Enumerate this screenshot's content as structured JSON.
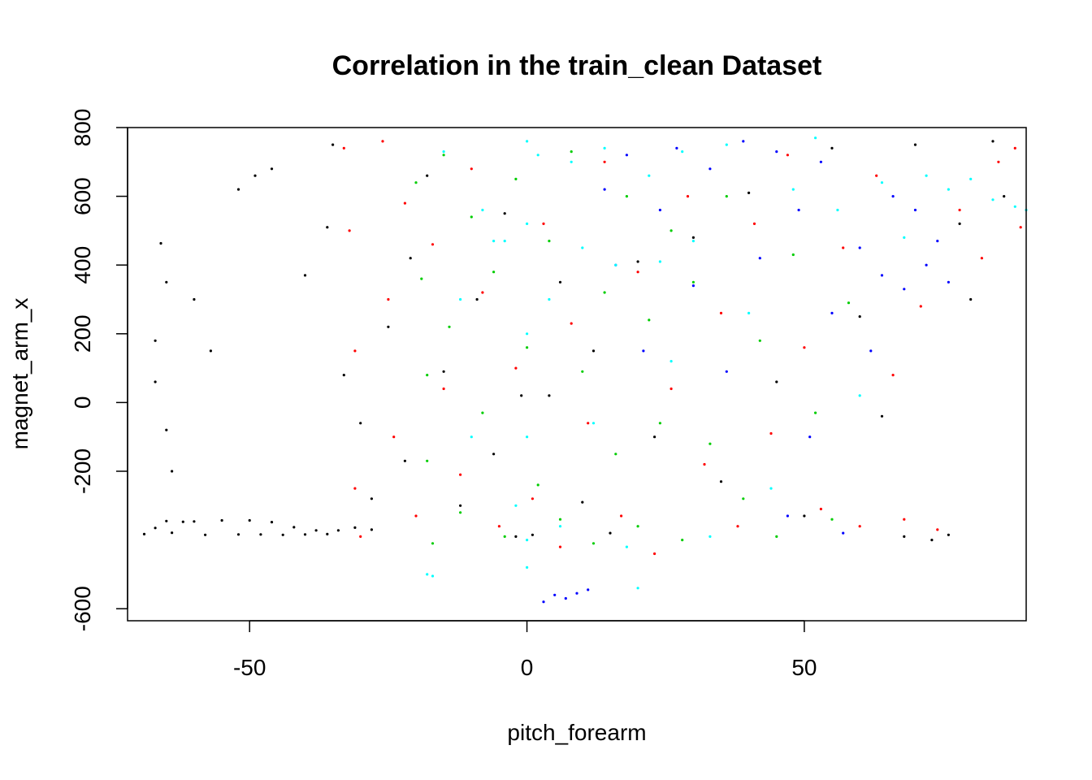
{
  "chart_data": {
    "type": "scatter",
    "title": "Correlation in the train_clean Dataset",
    "xlabel": "pitch_forearm",
    "ylabel": "magnet_arm_x",
    "xlim": [
      -72,
      90
    ],
    "ylim": [
      -635,
      800
    ],
    "x_ticks": [
      -50,
      0,
      50
    ],
    "x_tick_labels": [
      "-50",
      "0",
      "50"
    ],
    "y_ticks": [
      -600,
      -200,
      0,
      200,
      400,
      600,
      800
    ],
    "y_tick_labels": [
      "-600",
      "-200",
      "0",
      "200",
      "400",
      "600",
      "800"
    ],
    "grid": false,
    "legend": "none",
    "marker": "point",
    "colors": [
      "#000000",
      "#ff0000",
      "#00cd00",
      "#0000ff",
      "#00ffff"
    ],
    "series": [
      {
        "color": "#000000",
        "points": [
          [
            -69,
            -383
          ],
          [
            -67,
            -365
          ],
          [
            -65,
            -345
          ],
          [
            -64,
            -379
          ],
          [
            -62,
            -347
          ],
          [
            -60,
            -346
          ],
          [
            -58,
            -385
          ],
          [
            -55,
            -343
          ],
          [
            -52,
            -384
          ],
          [
            -50,
            -343
          ],
          [
            -48,
            -384
          ],
          [
            -46,
            -348
          ],
          [
            -44,
            -385
          ],
          [
            -42,
            -363
          ],
          [
            -40,
            -384
          ],
          [
            -38,
            -372
          ],
          [
            -36,
            -383
          ],
          [
            -34,
            -372
          ],
          [
            -31,
            -364
          ],
          [
            -28,
            -370
          ],
          [
            -66,
            463
          ],
          [
            -65,
            350
          ],
          [
            -67,
            180
          ],
          [
            -67,
            60
          ],
          [
            -65,
            -80
          ],
          [
            -64,
            -200
          ],
          [
            -60,
            300
          ],
          [
            -57,
            150
          ],
          [
            -52,
            620
          ],
          [
            -49,
            660
          ],
          [
            -46,
            680
          ],
          [
            -40,
            370
          ],
          [
            -36,
            510
          ],
          [
            -35,
            750
          ],
          [
            -33,
            80
          ],
          [
            -30,
            -60
          ],
          [
            -28,
            -280
          ],
          [
            -25,
            220
          ],
          [
            -22,
            -170
          ],
          [
            -21,
            420
          ],
          [
            -18,
            660
          ],
          [
            -15,
            90
          ],
          [
            -12,
            -300
          ],
          [
            -9,
            300
          ],
          [
            -6,
            -150
          ],
          [
            -4,
            550
          ],
          [
            -2,
            -390
          ],
          [
            -1,
            20
          ],
          [
            1,
            -385
          ],
          [
            4,
            20
          ],
          [
            6,
            350
          ],
          [
            10,
            -290
          ],
          [
            12,
            150
          ],
          [
            15,
            -380
          ],
          [
            20,
            410
          ],
          [
            23,
            -100
          ],
          [
            30,
            480
          ],
          [
            35,
            -230
          ],
          [
            40,
            610
          ],
          [
            45,
            60
          ],
          [
            50,
            -330
          ],
          [
            55,
            740
          ],
          [
            60,
            250
          ],
          [
            64,
            -40
          ],
          [
            68,
            -390
          ],
          [
            70,
            750
          ],
          [
            73,
            -400
          ],
          [
            76,
            -385
          ],
          [
            78,
            520
          ],
          [
            80,
            300
          ],
          [
            84,
            760
          ],
          [
            86,
            600
          ]
        ]
      },
      {
        "color": "#ff0000",
        "points": [
          [
            -33,
            740
          ],
          [
            -32,
            500
          ],
          [
            -31,
            150
          ],
          [
            -31,
            -250
          ],
          [
            -30,
            -390
          ],
          [
            -26,
            760
          ],
          [
            -25,
            300
          ],
          [
            -24,
            -100
          ],
          [
            -22,
            580
          ],
          [
            -20,
            -330
          ],
          [
            -17,
            460
          ],
          [
            -15,
            40
          ],
          [
            -12,
            -210
          ],
          [
            -10,
            680
          ],
          [
            -8,
            320
          ],
          [
            -5,
            -360
          ],
          [
            -2,
            100
          ],
          [
            1,
            -280
          ],
          [
            3,
            520
          ],
          [
            6,
            -420
          ],
          [
            8,
            230
          ],
          [
            11,
            -60
          ],
          [
            14,
            700
          ],
          [
            17,
            -330
          ],
          [
            20,
            380
          ],
          [
            23,
            -440
          ],
          [
            26,
            40
          ],
          [
            29,
            600
          ],
          [
            32,
            -180
          ],
          [
            35,
            260
          ],
          [
            38,
            -360
          ],
          [
            41,
            520
          ],
          [
            44,
            -90
          ],
          [
            47,
            720
          ],
          [
            50,
            160
          ],
          [
            53,
            -310
          ],
          [
            57,
            450
          ],
          [
            60,
            -360
          ],
          [
            63,
            660
          ],
          [
            66,
            80
          ],
          [
            68,
            -340
          ],
          [
            71,
            280
          ],
          [
            74,
            -370
          ],
          [
            78,
            560
          ],
          [
            82,
            420
          ],
          [
            85,
            700
          ],
          [
            88,
            740
          ],
          [
            89,
            510
          ]
        ]
      },
      {
        "color": "#00cd00",
        "points": [
          [
            -20,
            640
          ],
          [
            -19,
            360
          ],
          [
            -18,
            80
          ],
          [
            -18,
            -170
          ],
          [
            -17,
            -410
          ],
          [
            -15,
            720
          ],
          [
            -14,
            220
          ],
          [
            -12,
            -320
          ],
          [
            -10,
            540
          ],
          [
            -8,
            -30
          ],
          [
            -6,
            380
          ],
          [
            -4,
            -390
          ],
          [
            -2,
            650
          ],
          [
            0,
            160
          ],
          [
            2,
            -240
          ],
          [
            4,
            470
          ],
          [
            6,
            -340
          ],
          [
            8,
            730
          ],
          [
            10,
            90
          ],
          [
            12,
            -410
          ],
          [
            14,
            320
          ],
          [
            16,
            -150
          ],
          [
            18,
            600
          ],
          [
            20,
            -360
          ],
          [
            22,
            240
          ],
          [
            24,
            -60
          ],
          [
            26,
            500
          ],
          [
            28,
            -400
          ],
          [
            30,
            350
          ],
          [
            33,
            -120
          ],
          [
            36,
            600
          ],
          [
            39,
            -280
          ],
          [
            42,
            180
          ],
          [
            45,
            -390
          ],
          [
            48,
            430
          ],
          [
            52,
            -30
          ],
          [
            55,
            -340
          ],
          [
            58,
            290
          ]
        ]
      },
      {
        "color": "#0000ff",
        "points": [
          [
            3,
            -580
          ],
          [
            5,
            -560
          ],
          [
            7,
            -570
          ],
          [
            9,
            -555
          ],
          [
            11,
            -545
          ],
          [
            14,
            620
          ],
          [
            16,
            400
          ],
          [
            18,
            720
          ],
          [
            21,
            150
          ],
          [
            24,
            560
          ],
          [
            27,
            740
          ],
          [
            30,
            340
          ],
          [
            33,
            680
          ],
          [
            36,
            90
          ],
          [
            39,
            760
          ],
          [
            42,
            420
          ],
          [
            45,
            730
          ],
          [
            47,
            -330
          ],
          [
            49,
            560
          ],
          [
            51,
            -100
          ],
          [
            53,
            700
          ],
          [
            55,
            260
          ],
          [
            57,
            -380
          ],
          [
            60,
            450
          ],
          [
            62,
            150
          ],
          [
            64,
            370
          ],
          [
            66,
            600
          ],
          [
            68,
            330
          ],
          [
            70,
            560
          ],
          [
            72,
            400
          ],
          [
            74,
            470
          ],
          [
            76,
            350
          ]
        ]
      },
      {
        "color": "#00ffff",
        "points": [
          [
            -18,
            -500
          ],
          [
            -17,
            -505
          ],
          [
            -15,
            730
          ],
          [
            -12,
            300
          ],
          [
            -10,
            -100
          ],
          [
            -8,
            560
          ],
          [
            -6,
            470
          ],
          [
            -4,
            470
          ],
          [
            -2,
            -300
          ],
          [
            0,
            760
          ],
          [
            0,
            520
          ],
          [
            0,
            200
          ],
          [
            0,
            -100
          ],
          [
            0,
            -400
          ],
          [
            0,
            -480
          ],
          [
            2,
            720
          ],
          [
            4,
            300
          ],
          [
            6,
            -360
          ],
          [
            8,
            700
          ],
          [
            10,
            450
          ],
          [
            12,
            -60
          ],
          [
            14,
            740
          ],
          [
            16,
            400
          ],
          [
            18,
            -420
          ],
          [
            20,
            -540
          ],
          [
            22,
            660
          ],
          [
            24,
            410
          ],
          [
            26,
            120
          ],
          [
            28,
            730
          ],
          [
            30,
            470
          ],
          [
            33,
            -390
          ],
          [
            36,
            750
          ],
          [
            40,
            260
          ],
          [
            44,
            -250
          ],
          [
            48,
            620
          ],
          [
            52,
            770
          ],
          [
            56,
            560
          ],
          [
            60,
            20
          ],
          [
            64,
            640
          ],
          [
            68,
            480
          ],
          [
            72,
            660
          ],
          [
            76,
            620
          ],
          [
            80,
            650
          ],
          [
            84,
            590
          ],
          [
            88,
            570
          ],
          [
            90,
            560
          ]
        ]
      }
    ]
  }
}
